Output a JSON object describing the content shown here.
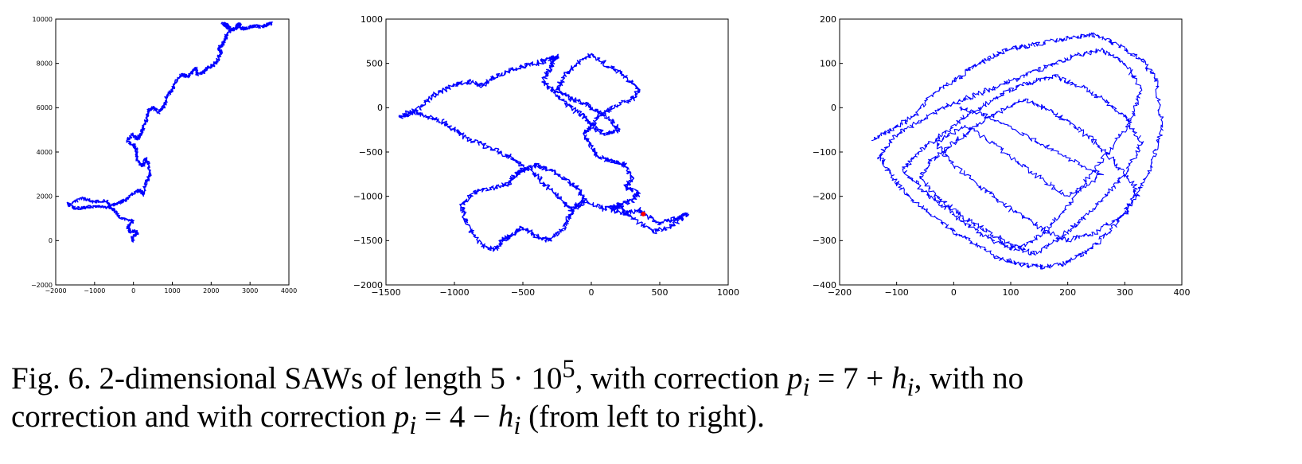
{
  "chart_data": [
    {
      "type": "line",
      "title": "",
      "xlabel": "",
      "ylabel": "",
      "xlim": [
        -2000,
        4000
      ],
      "ylim": [
        -2000,
        10000
      ],
      "xticks": [
        -2000,
        -1000,
        0,
        1000,
        2000,
        3000,
        4000
      ],
      "yticks": [
        -2000,
        0,
        2000,
        4000,
        6000,
        8000,
        10000
      ],
      "line_color": "#0000ff",
      "grid": false,
      "series": [
        {
          "x": [
            0,
            -50,
            100,
            60,
            -80,
            -150,
            0,
            -350,
            -450,
            -600,
            -700,
            -1000,
            -1300,
            -1700,
            -1500,
            -1250,
            -1000,
            -700,
            -450,
            -300,
            -150,
            0,
            150,
            250,
            300,
            350,
            420,
            380,
            300,
            250,
            100,
            80,
            10,
            -150,
            -50,
            100,
            200,
            250,
            350,
            380,
            500,
            650,
            800,
            850,
            1000,
            1100,
            1250,
            1400,
            1500,
            1600,
            1650,
            1800,
            1900,
            2050,
            2150,
            2250,
            2200,
            2300,
            2350,
            2400,
            2500,
            2450,
            2300,
            2400,
            2550,
            2650,
            2700,
            2800,
            2900,
            3100,
            3300,
            3450,
            3550
          ],
          "y": [
            0,
            150,
            300,
            450,
            400,
            600,
            900,
            1000,
            1300,
            1500,
            1800,
            1750,
            1900,
            1650,
            1450,
            1500,
            1550,
            1500,
            1650,
            1750,
            1900,
            2150,
            2300,
            2050,
            2500,
            2700,
            3000,
            3500,
            3700,
            3350,
            3650,
            4100,
            4300,
            4500,
            4800,
            4600,
            4800,
            5100,
            5500,
            5900,
            6000,
            5800,
            6100,
            6500,
            6800,
            7200,
            7500,
            7400,
            7600,
            7800,
            7500,
            7600,
            7800,
            7900,
            8100,
            8500,
            8700,
            8900,
            9000,
            9300,
            9500,
            9700,
            9800,
            9650,
            9500,
            9600,
            9800,
            9550,
            9600,
            9700,
            9650,
            9750,
            9800
          ]
        }
      ]
    },
    {
      "type": "line",
      "title": "",
      "xlabel": "",
      "ylabel": "",
      "xlim": [
        -1500,
        1000
      ],
      "ylim": [
        -2000,
        1000
      ],
      "xticks": [
        -1500,
        -1000,
        -500,
        0,
        500,
        1000
      ],
      "yticks": [
        -2000,
        -1500,
        -1000,
        -500,
        0,
        500,
        1000
      ],
      "line_color": "#0000ff",
      "marker_color": "#ff0000",
      "grid": false,
      "series": [
        {
          "x": [
            380,
            500,
            620,
            700,
            580,
            450,
            300,
            200,
            100,
            -50,
            -150,
            -200,
            -300,
            -400,
            -500,
            -600,
            -650,
            -700,
            -800,
            -900,
            -950,
            -850,
            -700,
            -600,
            -550,
            -500,
            -400,
            -300,
            -200,
            -100,
            -50,
            -150,
            -250,
            -350,
            -450,
            -600,
            -750,
            -900,
            -1000,
            -1100,
            -1200,
            -1300,
            -1400,
            -1250,
            -1150,
            -1000,
            -900,
            -800,
            -700,
            -550,
            -400,
            -300,
            -250,
            -300,
            -350,
            -250,
            -150,
            -50,
            0,
            100,
            200,
            150,
            50,
            -50,
            -150,
            -250,
            -200,
            -100,
            0,
            150,
            250,
            350,
            300,
            150,
            50,
            0,
            -50,
            0,
            50,
            150,
            250,
            300,
            250,
            350,
            300,
            200,
            150,
            250,
            350,
            380
          ],
          "y": [
            -1200,
            -1300,
            -1250,
            -1200,
            -1350,
            -1400,
            -1250,
            -1100,
            -1150,
            -1050,
            -1200,
            -1350,
            -1500,
            -1450,
            -1350,
            -1450,
            -1500,
            -1600,
            -1550,
            -1350,
            -1100,
            -950,
            -900,
            -850,
            -750,
            -700,
            -650,
            -700,
            -800,
            -900,
            -1050,
            -1150,
            -1000,
            -850,
            -700,
            -550,
            -450,
            -350,
            -250,
            -150,
            -100,
            -50,
            -100,
            0,
            150,
            250,
            300,
            250,
            350,
            450,
            500,
            550,
            580,
            450,
            300,
            150,
            0,
            -100,
            -200,
            -300,
            -250,
            -150,
            -50,
            50,
            100,
            200,
            350,
            500,
            600,
            450,
            350,
            200,
            100,
            0,
            -100,
            -200,
            -300,
            -450,
            -550,
            -600,
            -650,
            -800,
            -900,
            -950,
            -1050,
            -1100,
            -1150,
            -1200,
            -1150,
            -1200
          ]
        }
      ]
    },
    {
      "type": "line",
      "title": "",
      "xlabel": "",
      "ylabel": "",
      "xlim": [
        -200,
        400
      ],
      "ylim": [
        -400,
        200
      ],
      "xticks": [
        -200,
        -100,
        0,
        100,
        200,
        300,
        400
      ],
      "yticks": [
        -400,
        -300,
        -200,
        -100,
        0,
        100,
        200
      ],
      "line_color": "#0000ff",
      "grid": false,
      "series": [
        {
          "x": [
            -140,
            -110,
            -70,
            -40,
            0,
            30,
            60,
            90,
            130,
            170,
            210,
            250,
            290,
            330,
            355,
            365,
            350,
            320,
            280,
            240,
            200,
            160,
            120,
            80,
            40,
            0,
            -40,
            -80,
            -110,
            -130,
            -100,
            -60,
            -20,
            20,
            60,
            100,
            140,
            180,
            220,
            260,
            300,
            330,
            310,
            270,
            230,
            190,
            150,
            110,
            70,
            30,
            -10,
            -50,
            -90,
            -60,
            -20,
            20,
            60,
            100,
            140,
            180,
            220,
            260,
            300,
            330,
            300,
            260,
            220,
            180,
            140,
            100,
            60,
            20,
            -20,
            -60,
            -40,
            0,
            40,
            80,
            120,
            160,
            200,
            240,
            280,
            320,
            300,
            250,
            200,
            150,
            100,
            50,
            0,
            -30,
            20,
            80,
            140,
            200,
            260,
            180,
            120,
            60,
            10
          ],
          "y": [
            -70,
            -50,
            -20,
            30,
            60,
            90,
            110,
            130,
            140,
            150,
            160,
            165,
            140,
            110,
            60,
            -40,
            -120,
            -200,
            -270,
            -320,
            -350,
            -360,
            -355,
            -340,
            -310,
            -280,
            -240,
            -200,
            -150,
            -110,
            -60,
            -30,
            0,
            20,
            40,
            60,
            80,
            100,
            120,
            130,
            100,
            40,
            -30,
            -100,
            -170,
            -240,
            -290,
            -320,
            -300,
            -270,
            -230,
            -190,
            -140,
            -100,
            -60,
            -20,
            10,
            40,
            60,
            70,
            50,
            20,
            -20,
            -80,
            -150,
            -210,
            -260,
            -300,
            -330,
            -310,
            -280,
            -250,
            -210,
            -160,
            -120,
            -80,
            -40,
            -10,
            20,
            0,
            -30,
            -70,
            -120,
            -180,
            -240,
            -280,
            -300,
            -270,
            -230,
            -180,
            -130,
            -80,
            -40,
            -90,
            -150,
            -200,
            -150,
            -100,
            -60,
            -20,
            0
          ]
        }
      ]
    }
  ],
  "caption": {
    "line1_a": "Fig. 6. 2-dimensional SAWs of length 5 · 10",
    "line1_exp": "5",
    "line1_b": ", with correction ",
    "line1_p": "p",
    "line1_i": "i",
    "line1_c": " = 7 + ",
    "line1_h": "h",
    "line1_i2": "i",
    "line1_d": ", with no",
    "line2_a": "correction and with correction ",
    "line2_p": "p",
    "line2_i": "i",
    "line2_b": " = 4 − ",
    "line2_h": "h",
    "line2_i2": "i",
    "line2_c": " (from left to right)."
  }
}
